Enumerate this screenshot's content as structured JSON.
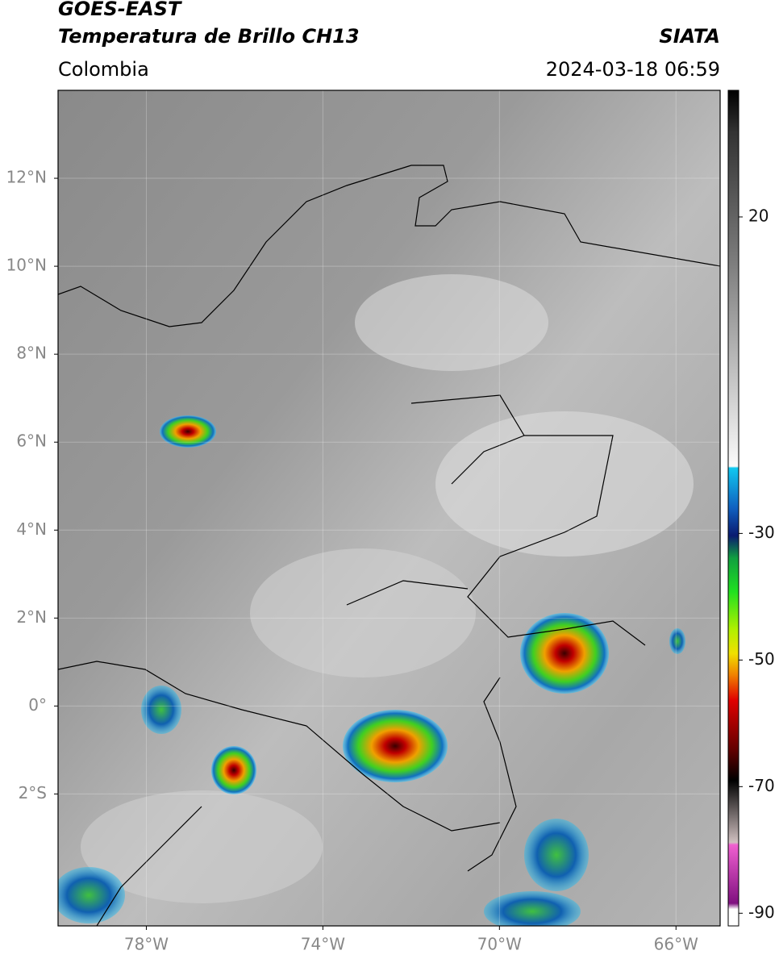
{
  "header": {
    "title": "GOES-EAST",
    "subtitle": "Temperatura de Brillo CH13",
    "region": "Colombia",
    "source": "SIATA",
    "timestamp": "2024-03-18 06:59"
  },
  "map": {
    "xlim": [
      -80,
      -65
    ],
    "ylim": [
      -5,
      14
    ],
    "grid": true,
    "xticks": [
      {
        "value": -78,
        "label": "78°W"
      },
      {
        "value": -74,
        "label": "74°W"
      },
      {
        "value": -70,
        "label": "70°W"
      },
      {
        "value": -66,
        "label": "66°W"
      }
    ],
    "yticks": [
      {
        "value": 12,
        "label": "12°N"
      },
      {
        "value": 10,
        "label": "10°N"
      },
      {
        "value": 8,
        "label": "8°N"
      },
      {
        "value": 6,
        "label": "6°N"
      },
      {
        "value": 4,
        "label": "4°N"
      },
      {
        "value": 2,
        "label": "2°N"
      },
      {
        "value": 0,
        "label": "0°"
      },
      {
        "value": -2,
        "label": "2°S"
      }
    ]
  },
  "colorbar": {
    "ylim": [
      -92,
      40
    ],
    "yticks": [
      20,
      -30,
      -50,
      -70,
      -90
    ]
  }
}
